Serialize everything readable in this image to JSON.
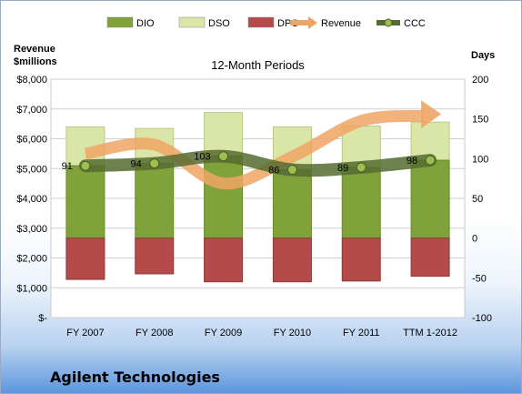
{
  "company": "Agilent Technologies",
  "chart_data": {
    "type": "bar",
    "title": "12-Month Periods",
    "left_axis_label": [
      "Revenue",
      "$millions"
    ],
    "right_axis_label": "Days",
    "categories": [
      "FY 2007",
      "FY 2008",
      "FY 2009",
      "FY 2010",
      "FY 2011",
      "TTM 1-2012"
    ],
    "left_ylim": [
      0,
      8000
    ],
    "left_ticks": [
      {
        "value": 0,
        "label": "$-"
      },
      {
        "value": 1000,
        "label": "$1,000"
      },
      {
        "value": 2000,
        "label": "$2,000"
      },
      {
        "value": 3000,
        "label": "$3,000"
      },
      {
        "value": 4000,
        "label": "$4,000"
      },
      {
        "value": 5000,
        "label": "$5,000"
      },
      {
        "value": 6000,
        "label": "$6,000"
      },
      {
        "value": 7000,
        "label": "$7,000"
      },
      {
        "value": 8000,
        "label": "$8,000"
      }
    ],
    "right_ylim": [
      -100,
      200
    ],
    "right_ticks": [
      {
        "value": -100,
        "label": "-100"
      },
      {
        "value": -50,
        "label": "-50"
      },
      {
        "value": 0,
        "label": "0"
      },
      {
        "value": 50,
        "label": "50"
      },
      {
        "value": 100,
        "label": "100"
      },
      {
        "value": 150,
        "label": "150"
      },
      {
        "value": 200,
        "label": "200"
      }
    ],
    "series": [
      {
        "name": "DIO",
        "axis": "right",
        "color": "#7fa23a",
        "values": [
          0,
          0,
          0,
          0,
          0,
          0
        ],
        "top": [
          91,
          94,
          103,
          86,
          89,
          98
        ]
      },
      {
        "name": "DSO",
        "axis": "right",
        "color": "#d9e6a8",
        "values": [
          0,
          0,
          0,
          0,
          0,
          0
        ],
        "top": [
          140,
          138,
          158,
          140,
          141,
          146
        ]
      },
      {
        "name": "DPO",
        "axis": "right",
        "color": "#b54a4a",
        "values": [
          -52,
          -45,
          -55,
          -55,
          -54,
          -48
        ]
      },
      {
        "name": "Revenue",
        "axis": "left",
        "color": "#f0a464",
        "values": [
          5500,
          5800,
          4500,
          5400,
          6600,
          6800
        ]
      },
      {
        "name": "CCC",
        "axis": "right",
        "color": "#566b30",
        "values": [
          91,
          94,
          103,
          86,
          89,
          98
        ]
      }
    ],
    "data_labels": [
      "91",
      "94",
      "103",
      "86",
      "89",
      "98"
    ],
    "legend_position": "top",
    "grid": true
  }
}
